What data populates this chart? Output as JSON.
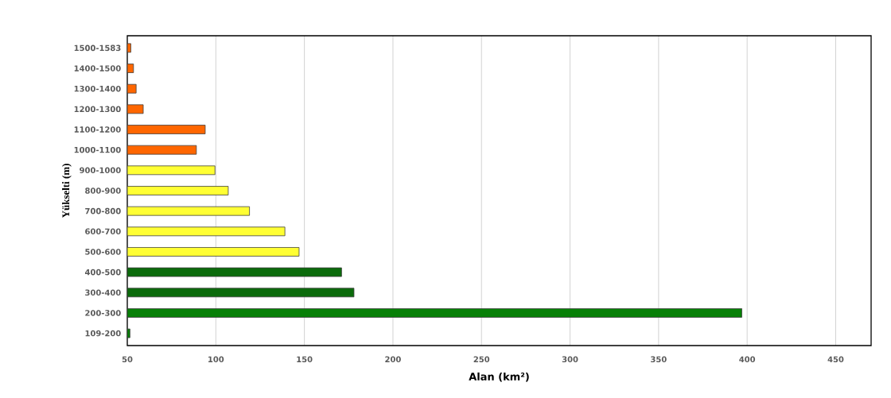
{
  "chart_data": {
    "type": "bar",
    "orientation": "horizontal",
    "xlabel": "Alan (km²)",
    "ylabel": "Yükselti (m)",
    "categories": [
      "1500-1583",
      "1400-1500",
      "1300-1400",
      "1200-1300",
      "1100-1200",
      "1000-1100",
      "900-1000",
      "800-900",
      "700-800",
      "600-700",
      "500-600",
      "400-500",
      "300-400",
      "200-300",
      "109-200"
    ],
    "values": [
      52,
      53.5,
      55,
      59,
      94,
      89,
      99.5,
      107,
      119,
      139,
      147,
      171,
      178,
      397,
      51.5
    ],
    "colors": [
      "#ff6600",
      "#ff6600",
      "#ff6600",
      "#ff6600",
      "#ff6600",
      "#ff6600",
      "#ffff33",
      "#ffff33",
      "#ffff33",
      "#ffff33",
      "#ffff33",
      "#0b6b0b",
      "#0b6b0b",
      "#078007",
      "#078007"
    ],
    "xlim": [
      50,
      470
    ],
    "xticks": [
      50,
      100,
      150,
      200,
      250,
      300,
      350,
      400,
      450
    ],
    "grid": "x"
  }
}
